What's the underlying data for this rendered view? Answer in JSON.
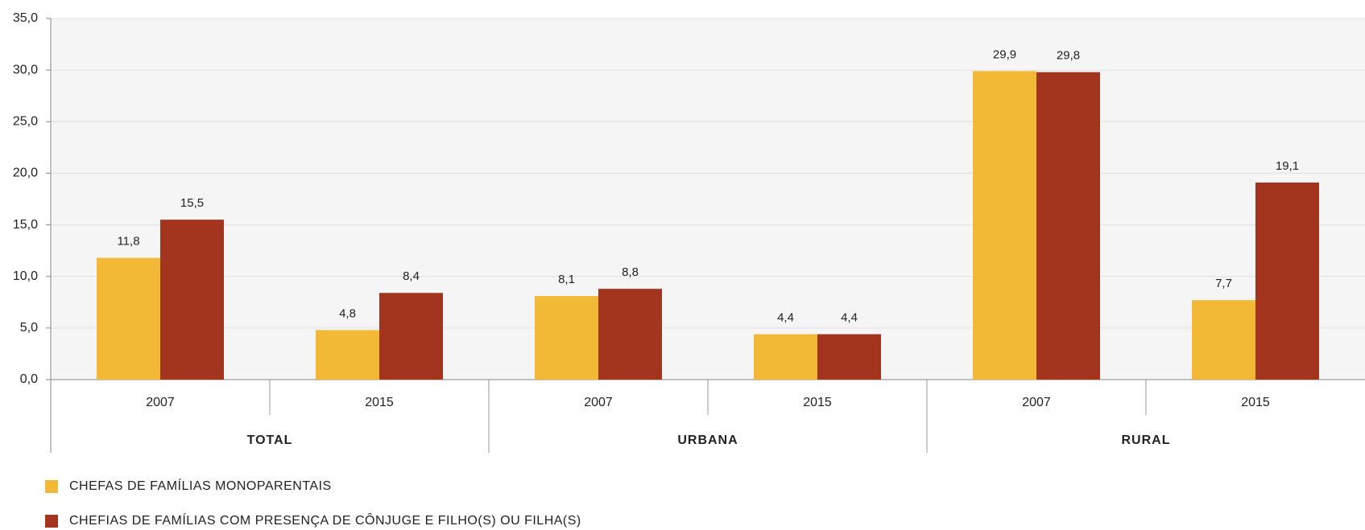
{
  "chart_data": {
    "type": "bar",
    "categories": [
      "2007",
      "2015",
      "2007",
      "2015",
      "2007",
      "2015"
    ],
    "groups": [
      "TOTAL",
      "URBANA",
      "RURAL"
    ],
    "series": [
      {
        "name": "CHEFAS DE FAMÍLIAS MONOPARENTAIS",
        "color": "#f2b937",
        "values": [
          11.8,
          4.8,
          8.1,
          4.4,
          29.9,
          7.7
        ],
        "value_labels": [
          "11,8",
          "4,8",
          "8,1",
          "4,4",
          "29,9",
          "7,7"
        ]
      },
      {
        "name": "CHEFIAS DE FAMÍLIAS COM PRESENÇA DE CÔNJUGE E FILHO(S) OU FILHA(S)",
        "color": "#a3341e",
        "values": [
          15.5,
          8.4,
          8.8,
          4.4,
          29.8,
          19.1
        ],
        "value_labels": [
          "15,5",
          "8,4",
          "8,8",
          "4,4",
          "29,8",
          "19,1"
        ]
      }
    ],
    "ylim": [
      0,
      35
    ],
    "yticks": [
      {
        "value": 0,
        "label": "0,0"
      },
      {
        "value": 5,
        "label": "5,0"
      },
      {
        "value": 10,
        "label": "10,0"
      },
      {
        "value": 15,
        "label": "15,0"
      },
      {
        "value": 20,
        "label": "20,0"
      },
      {
        "value": 25,
        "label": "25,0"
      },
      {
        "value": 30,
        "label": "30,0"
      },
      {
        "value": 35,
        "label": "35,0"
      }
    ],
    "grid": true
  }
}
